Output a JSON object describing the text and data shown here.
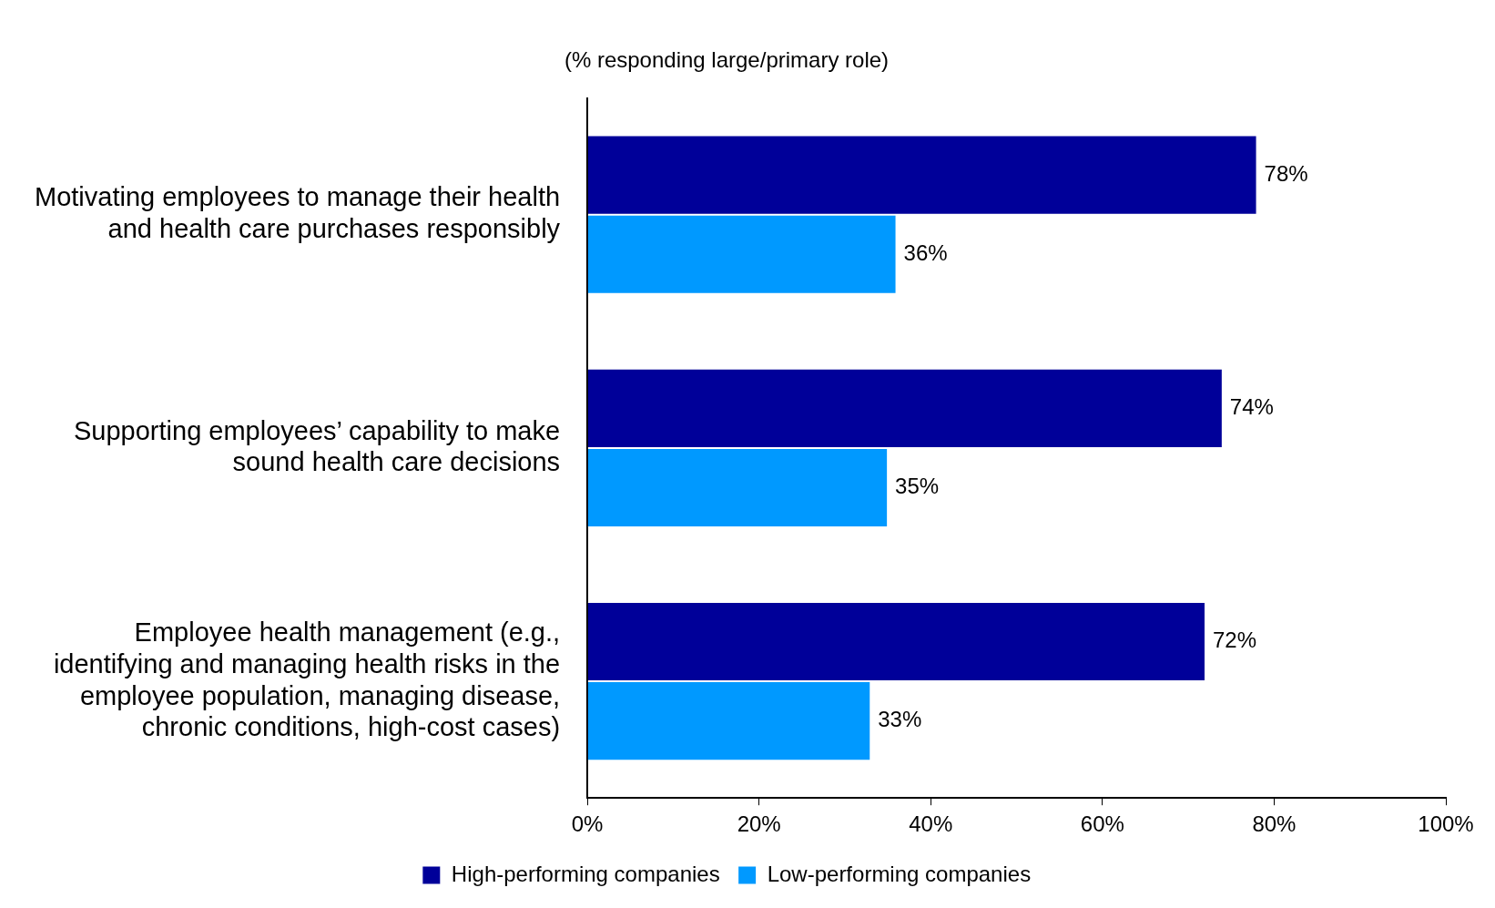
{
  "chart_data": {
    "type": "bar",
    "orientation": "horizontal",
    "subtitle": "(% responding large/primary role)",
    "categories": [
      "Motivating employees to manage their health and health care purchases responsibly",
      "Supporting employees’ capability to make sound health care decisions",
      "Employee health management (e.g., identifying and managing health risks in the employee population, managing disease, chronic conditions, high-cost cases)"
    ],
    "series": [
      {
        "name": "High-performing companies",
        "color": "#000099",
        "values": [
          78,
          74,
          72
        ]
      },
      {
        "name": "Low-performing companies",
        "color": "#0099ff",
        "values": [
          36,
          35,
          33
        ]
      }
    ],
    "xlim": [
      0,
      100
    ],
    "xticks": [
      {
        "value": 0,
        "label": "0%"
      },
      {
        "value": 20,
        "label": "20%"
      },
      {
        "value": 40,
        "label": "40%"
      },
      {
        "value": 60,
        "label": "60%"
      },
      {
        "value": 80,
        "label": "80%"
      },
      {
        "value": 100,
        "label": "100%"
      }
    ],
    "value_labels": [
      [
        "78%",
        "74%",
        "72%"
      ],
      [
        "36%",
        "35%",
        "33%"
      ]
    ],
    "grid": false,
    "legend": "bottom"
  }
}
